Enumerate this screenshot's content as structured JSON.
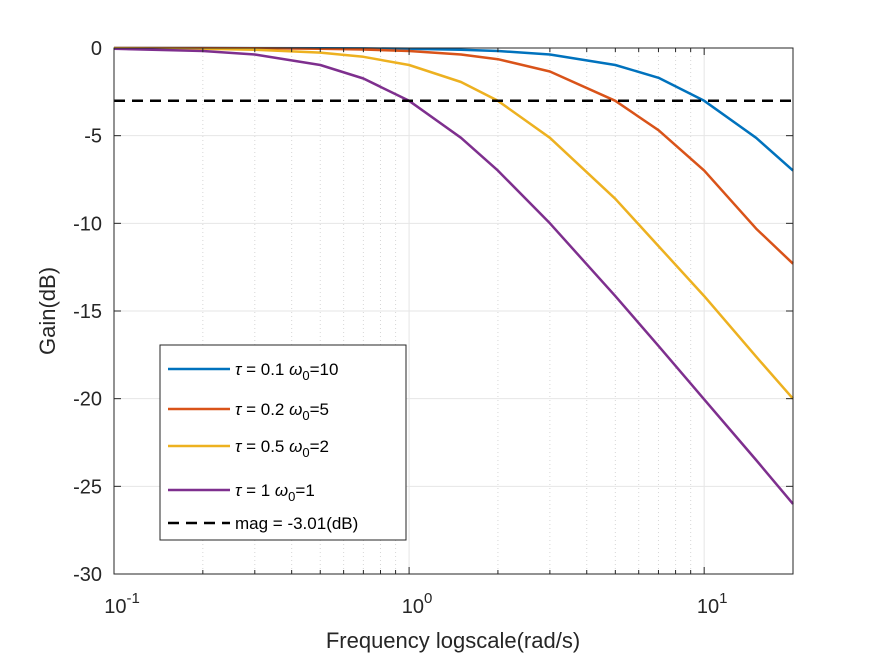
{
  "chart_data": {
    "type": "line",
    "xscale": "log",
    "xlabel": "Frequency logscale(rad/s)",
    "ylabel": "Gain(dB)",
    "xlim": [
      0.1,
      20
    ],
    "ylim": [
      -30,
      0
    ],
    "xticks": [
      {
        "base": "10",
        "exp": "-1"
      },
      {
        "base": "10",
        "exp": "0"
      },
      {
        "base": "10",
        "exp": "1"
      }
    ],
    "yticks": [
      "0",
      "-5",
      "-10",
      "-15",
      "-20",
      "-25",
      "-30"
    ],
    "grid": true,
    "legend_position": "lower-left",
    "x": [
      0.1,
      0.2,
      0.3,
      0.5,
      0.7,
      1,
      1.5,
      2,
      3,
      5,
      7,
      10,
      15,
      20
    ],
    "series": [
      {
        "tau": "0.1",
        "w0": "10",
        "color": "#0072BD",
        "values": [
          0.0,
          0.0,
          -0.004,
          -0.011,
          -0.021,
          -0.043,
          -0.097,
          -0.17,
          -0.37,
          -0.97,
          -1.7,
          -3.01,
          -5.12,
          -6.99
        ]
      },
      {
        "tau": "0.2",
        "w0": "5",
        "color": "#D95319",
        "values": [
          0.0,
          -0.007,
          -0.016,
          -0.043,
          -0.084,
          -0.17,
          -0.37,
          -0.64,
          -1.34,
          -3.01,
          -4.69,
          -6.99,
          -10.3,
          -12.3
        ]
      },
      {
        "tau": "0.5",
        "w0": "2",
        "color": "#EDB120",
        "values": [
          -0.011,
          -0.043,
          -0.097,
          -0.26,
          -0.5,
          -0.97,
          -1.94,
          -3.01,
          -5.12,
          -8.6,
          -11.3,
          -14.15,
          -17.6,
          -20.0
        ]
      },
      {
        "tau": "1",
        "w0": "1",
        "color": "#7E2F8E",
        "values": [
          -0.043,
          -0.17,
          -0.37,
          -0.97,
          -1.74,
          -3.01,
          -5.12,
          -6.99,
          -10.0,
          -14.15,
          -16.99,
          -20.04,
          -23.5,
          -26.0
        ]
      }
    ],
    "reference_line": {
      "y": -3.01,
      "label": "mag = -3.01(dB)",
      "color": "#000000"
    }
  }
}
